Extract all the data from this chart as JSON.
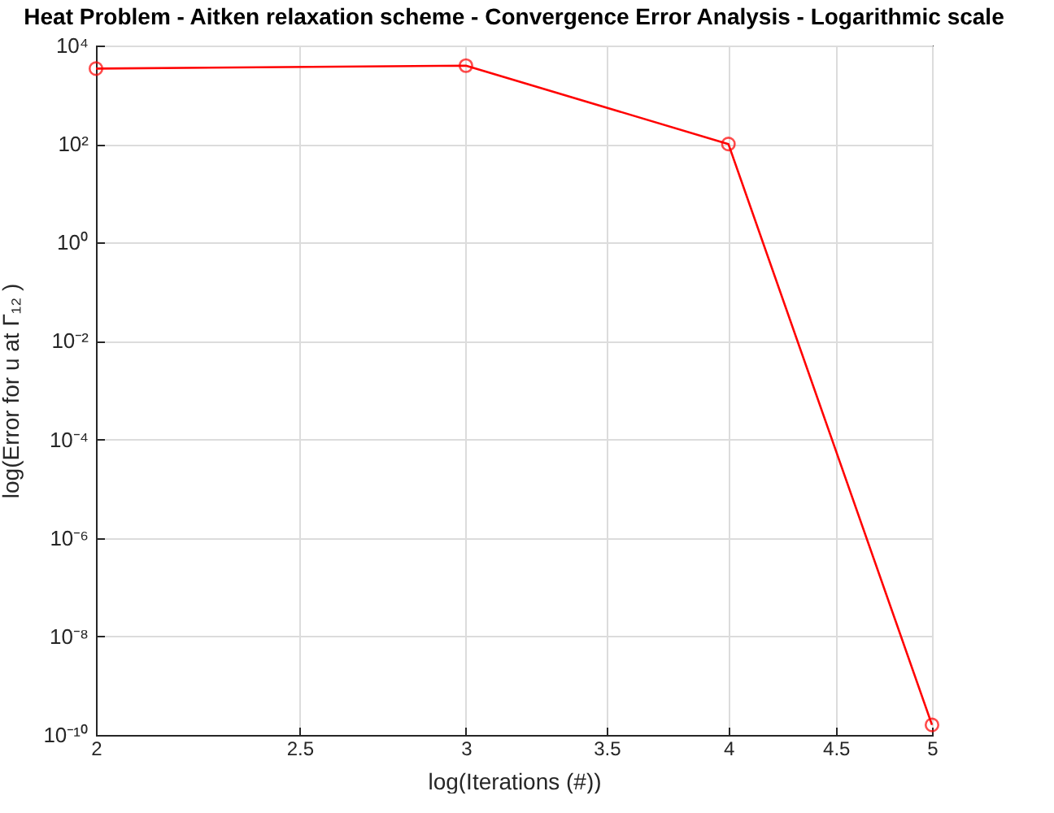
{
  "chart_data": {
    "type": "line",
    "title": "Heat Problem - Aitken relaxation scheme - Convergence Error Analysis - Logarithmic scale",
    "xlabel": "log(Iterations (#))",
    "ylabel": "log(Error for u at Γ₁₂ )",
    "x": [
      2,
      3,
      4,
      5
    ],
    "series": [
      {
        "color": "#ff0000",
        "values": [
          3400,
          3900,
          100,
          1.6e-10
        ]
      }
    ],
    "log": "xy",
    "grid": true,
    "marker": "circle",
    "line_style": "solid",
    "xlim": [
      2,
      5
    ],
    "xticks": [
      2,
      2.5,
      3,
      3.5,
      4,
      4.5,
      5
    ],
    "ylim": [
      1e-10,
      10000
    ],
    "yticks": [
      {
        "value": 1e-10,
        "label": "10⁻¹⁰"
      },
      {
        "value": 1e-08,
        "label": "10⁻⁸"
      },
      {
        "value": 1e-06,
        "label": "10⁻⁶"
      },
      {
        "value": 0.0001,
        "label": "10⁻⁴"
      },
      {
        "value": 0.01,
        "label": "10⁻²"
      },
      {
        "value": 1,
        "label": "10⁰"
      },
      {
        "value": 100,
        "label": "10²"
      },
      {
        "value": 10000,
        "label": "10⁴"
      }
    ]
  }
}
